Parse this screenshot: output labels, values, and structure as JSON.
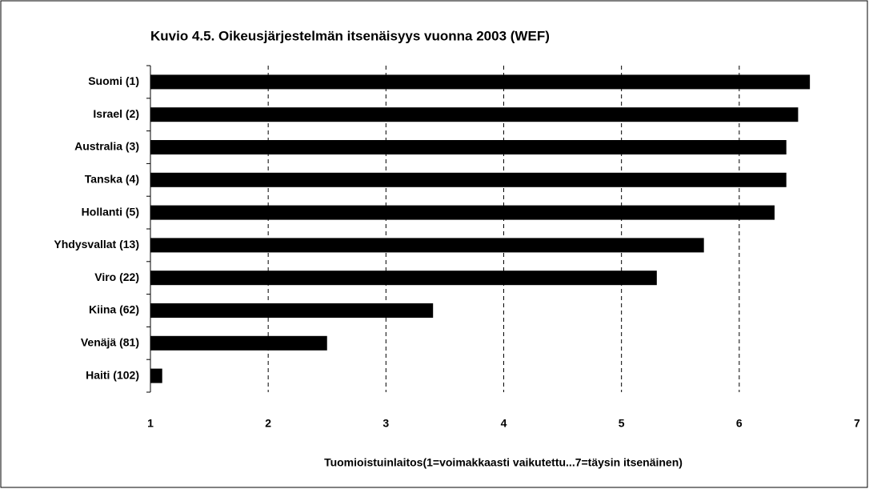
{
  "chart_data": {
    "type": "bar",
    "orientation": "horizontal",
    "title": "Kuvio 4.5. Oikeusjärjestelmän itsenäisyys vuonna 2003 (WEF)",
    "x_label": "Tuomioistuinlaitos(1=voimakkaasti vaikutettu...7=täysin itsenäinen)",
    "categories": [
      "Suomi (1)",
      "Israel (2)",
      "Australia (3)",
      "Tanska (4)",
      "Hollanti (5)",
      "Yhdysvallat (13)",
      "Viro (22)",
      "Kiina (62)",
      "Venäjä (81)",
      "Haiti (102)"
    ],
    "values": [
      6.6,
      6.5,
      6.4,
      6.4,
      6.3,
      5.7,
      5.3,
      3.4,
      2.5,
      1.1
    ],
    "color": "#000000",
    "xlim": [
      1,
      7
    ],
    "xticks": [
      1,
      2,
      3,
      4,
      5,
      6,
      7
    ],
    "grid": true
  }
}
